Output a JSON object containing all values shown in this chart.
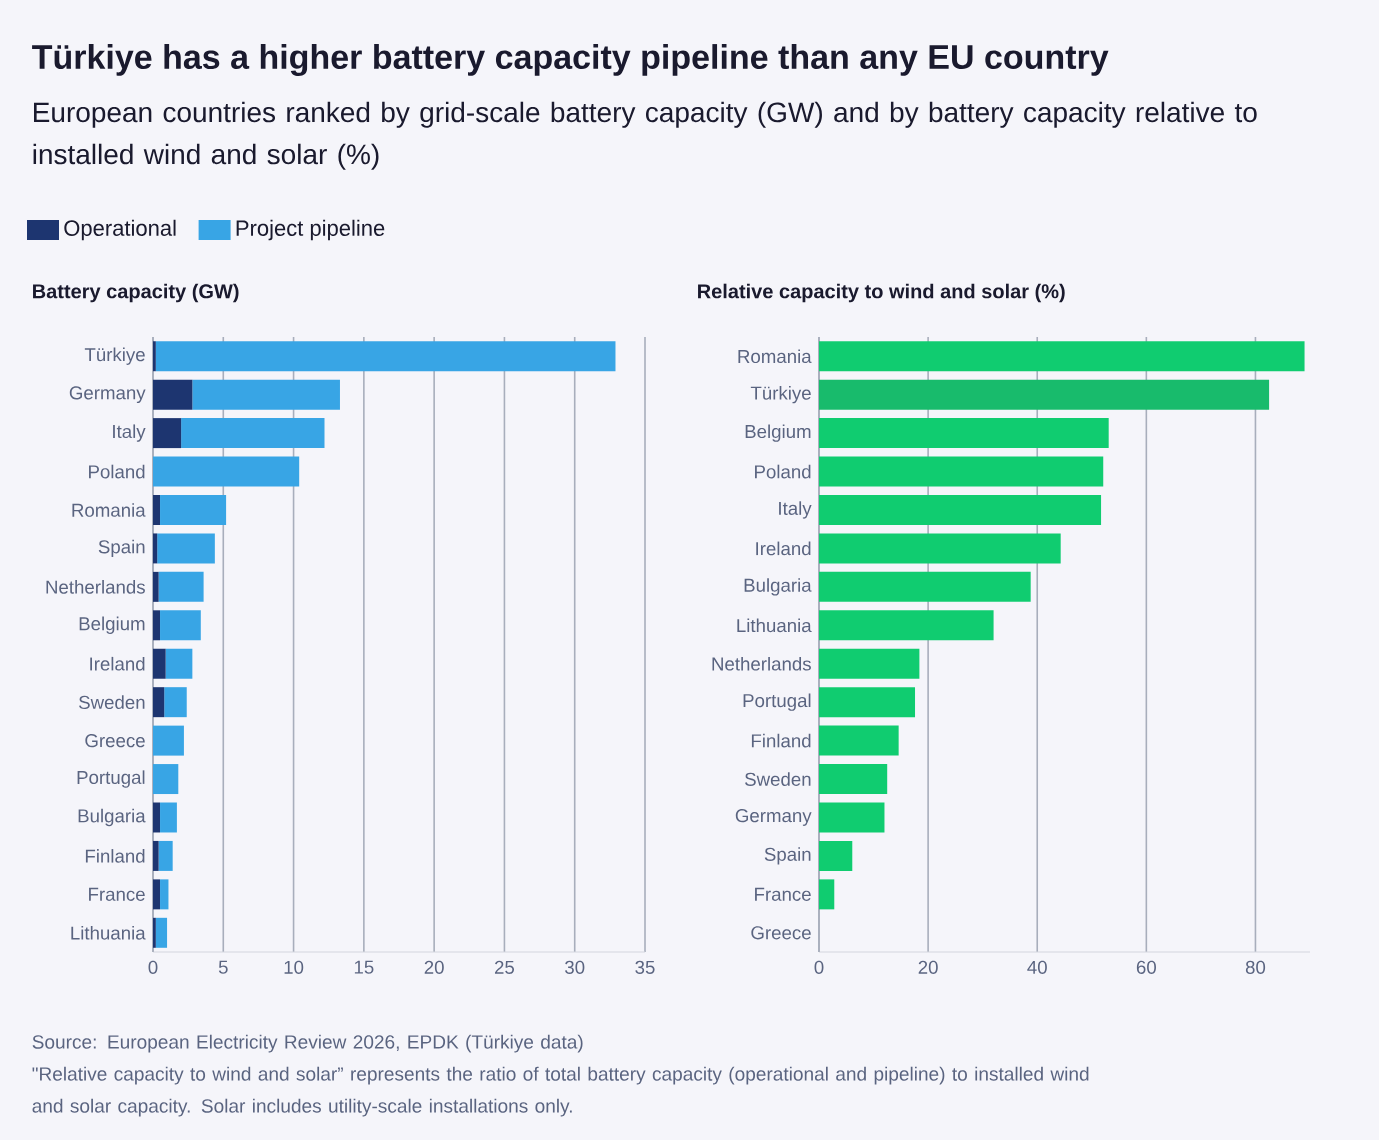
{
  "chart_data": [
    {
      "type": "other",
      "title": "Türkiye has a higher battery capacity pipeline than any EU country",
      "subtitle": "European countries ranked by grid-scale battery capacity (GW) and by battery capacity relative to installed wind and solar (%)",
      "annotations": [
        "Source: European Electricity Review 2026, EPDK (Türkiye data)",
        "\"Relative capacity to wind and solar” represents the ratio of total battery capacity (operational and pipeline) to installed wind and solar capacity. Solar includes utility-scale installations only."
      ]
    },
    {
      "type": "bar",
      "orientation": "horizontal",
      "stacked": true,
      "title": "Battery capacity (GW)",
      "legend": "top",
      "grid": "x",
      "categories": [
        "Türkiye",
        "Germany",
        "Italy",
        "Poland",
        "Romania",
        "Spain",
        "Netherlands",
        "Belgium",
        "Ireland",
        "Sweden",
        "Greece",
        "Portugal",
        "Bulgaria",
        "Finland",
        "France",
        "Lithuania"
      ],
      "series": [
        {
          "name": "Operational",
          "color": "#1d3570",
          "values": [
            0.2,
            2.8,
            2.0,
            0,
            0.5,
            0.3,
            0.4,
            0.5,
            0.9,
            0.8,
            0,
            0,
            0.5,
            0.4,
            0.5,
            0.2
          ]
        },
        {
          "name": "Project pipeline",
          "color": "#38a5e5",
          "values": [
            32.7,
            10.5,
            10.2,
            10.4,
            4.7,
            4.1,
            3.2,
            2.9,
            1.9,
            1.6,
            2.2,
            1.8,
            1.2,
            1.0,
            0.6,
            0.8
          ]
        }
      ],
      "xlim": [
        0,
        35
      ],
      "xticks": [
        0,
        5,
        10,
        15,
        20,
        25,
        30,
        35
      ]
    },
    {
      "type": "bar",
      "orientation": "horizontal",
      "title": "Relative capacity to wind and solar (%)",
      "grid": "x",
      "categories": [
        "Romania",
        "Türkiye",
        "Belgium",
        "Poland",
        "Italy",
        "Ireland",
        "Bulgaria",
        "Lithuania",
        "Netherlands",
        "Portugal",
        "Finland",
        "Sweden",
        "Germany",
        "Spain",
        "France",
        "Greece"
      ],
      "values": [
        89.0,
        82.5,
        53.1,
        52.1,
        51.7,
        44.3,
        38.8,
        32.0,
        18.4,
        17.6,
        14.6,
        12.5,
        12.0,
        6.1,
        2.8,
        0
      ],
      "colors": [
        "#10cc70",
        "#18bb6c",
        "#10cc70",
        "#10cc70",
        "#10cc70",
        "#10cc70",
        "#10cc70",
        "#10cc70",
        "#10cc70",
        "#10cc70",
        "#10cc70",
        "#10cc70",
        "#10cc70",
        "#10cc70",
        "#10cc70",
        "#10cc70"
      ],
      "xlim": [
        0,
        90
      ],
      "xticks": [
        0,
        20,
        40,
        60,
        80
      ]
    }
  ]
}
